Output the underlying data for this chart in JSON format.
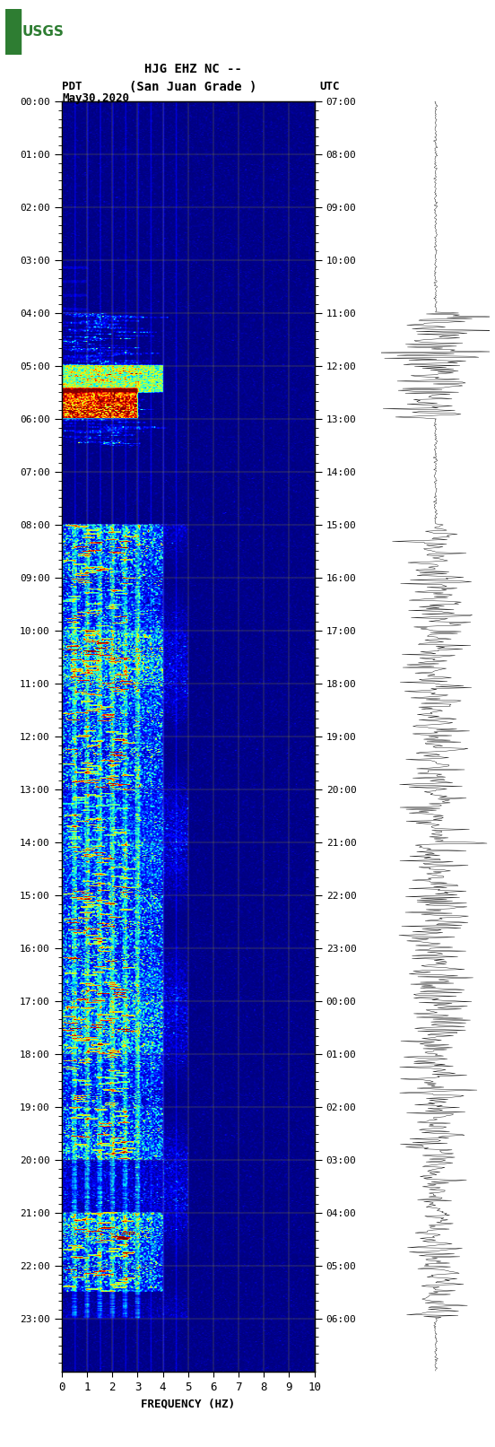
{
  "title_line1": "HJG EHZ NC --",
  "title_line2": "(San Juan Grade )",
  "left_label": "PDT",
  "date_label": "May30,2020",
  "right_label": "UTC",
  "xlabel": "FREQUENCY (HZ)",
  "freq_min": 0,
  "freq_max": 10,
  "freq_ticks": [
    0,
    1,
    2,
    3,
    4,
    5,
    6,
    7,
    8,
    9,
    10
  ],
  "pdt_tick_hours": [
    0,
    1,
    2,
    3,
    4,
    5,
    6,
    7,
    8,
    9,
    10,
    11,
    12,
    13,
    14,
    15,
    16,
    17,
    18,
    19,
    20,
    21,
    22,
    23
  ],
  "utc_tick_hours": [
    7,
    8,
    9,
    10,
    11,
    12,
    13,
    14,
    15,
    16,
    17,
    18,
    19,
    20,
    21,
    22,
    23,
    0,
    1,
    2,
    3,
    4,
    5,
    6
  ],
  "fig_width": 5.52,
  "fig_height": 16.13,
  "dpi": 100,
  "n_time_bins": 1380,
  "n_freq_bins": 200
}
